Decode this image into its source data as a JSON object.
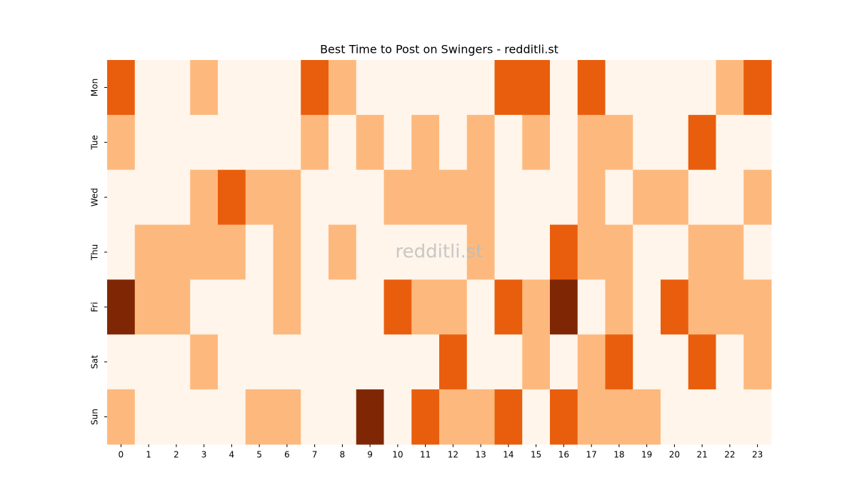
{
  "chart_data": {
    "type": "heatmap",
    "title": "Best Time to Post on Swingers - redditli.st",
    "watermark": "redditli.st",
    "x": [
      0,
      1,
      2,
      3,
      4,
      5,
      6,
      7,
      8,
      9,
      10,
      11,
      12,
      13,
      14,
      15,
      16,
      17,
      18,
      19,
      20,
      21,
      22,
      23
    ],
    "y": [
      "Mon",
      "Tue",
      "Wed",
      "Thu",
      "Fri",
      "Sat",
      "Sun"
    ],
    "colors": [
      "#fff5eb",
      "#fdb97d",
      "#e95e0d",
      "#7f2704"
    ],
    "values": [
      [
        2,
        0,
        0,
        1,
        0,
        0,
        0,
        2,
        1,
        0,
        0,
        0,
        0,
        0,
        2,
        2,
        0,
        2,
        0,
        0,
        0,
        0,
        1,
        2
      ],
      [
        1,
        0,
        0,
        0,
        0,
        0,
        0,
        1,
        0,
        1,
        0,
        1,
        0,
        1,
        0,
        1,
        0,
        1,
        1,
        0,
        0,
        2,
        0,
        0
      ],
      [
        0,
        0,
        0,
        1,
        2,
        1,
        1,
        0,
        0,
        0,
        1,
        1,
        1,
        1,
        0,
        0,
        0,
        1,
        0,
        1,
        1,
        0,
        0,
        1
      ],
      [
        0,
        1,
        1,
        1,
        1,
        0,
        1,
        0,
        1,
        0,
        0,
        0,
        0,
        1,
        0,
        0,
        2,
        1,
        1,
        0,
        0,
        1,
        1,
        0
      ],
      [
        3,
        1,
        1,
        0,
        0,
        0,
        1,
        0,
        0,
        0,
        2,
        1,
        1,
        0,
        2,
        1,
        3,
        0,
        1,
        0,
        2,
        1,
        1,
        1
      ],
      [
        0,
        0,
        0,
        1,
        0,
        0,
        0,
        0,
        0,
        0,
        0,
        0,
        2,
        0,
        0,
        1,
        0,
        1,
        2,
        0,
        0,
        2,
        0,
        1
      ],
      [
        1,
        0,
        0,
        0,
        0,
        1,
        1,
        0,
        0,
        3,
        0,
        2,
        1,
        1,
        2,
        0,
        2,
        1,
        1,
        1,
        0,
        0,
        0,
        0
      ]
    ]
  }
}
